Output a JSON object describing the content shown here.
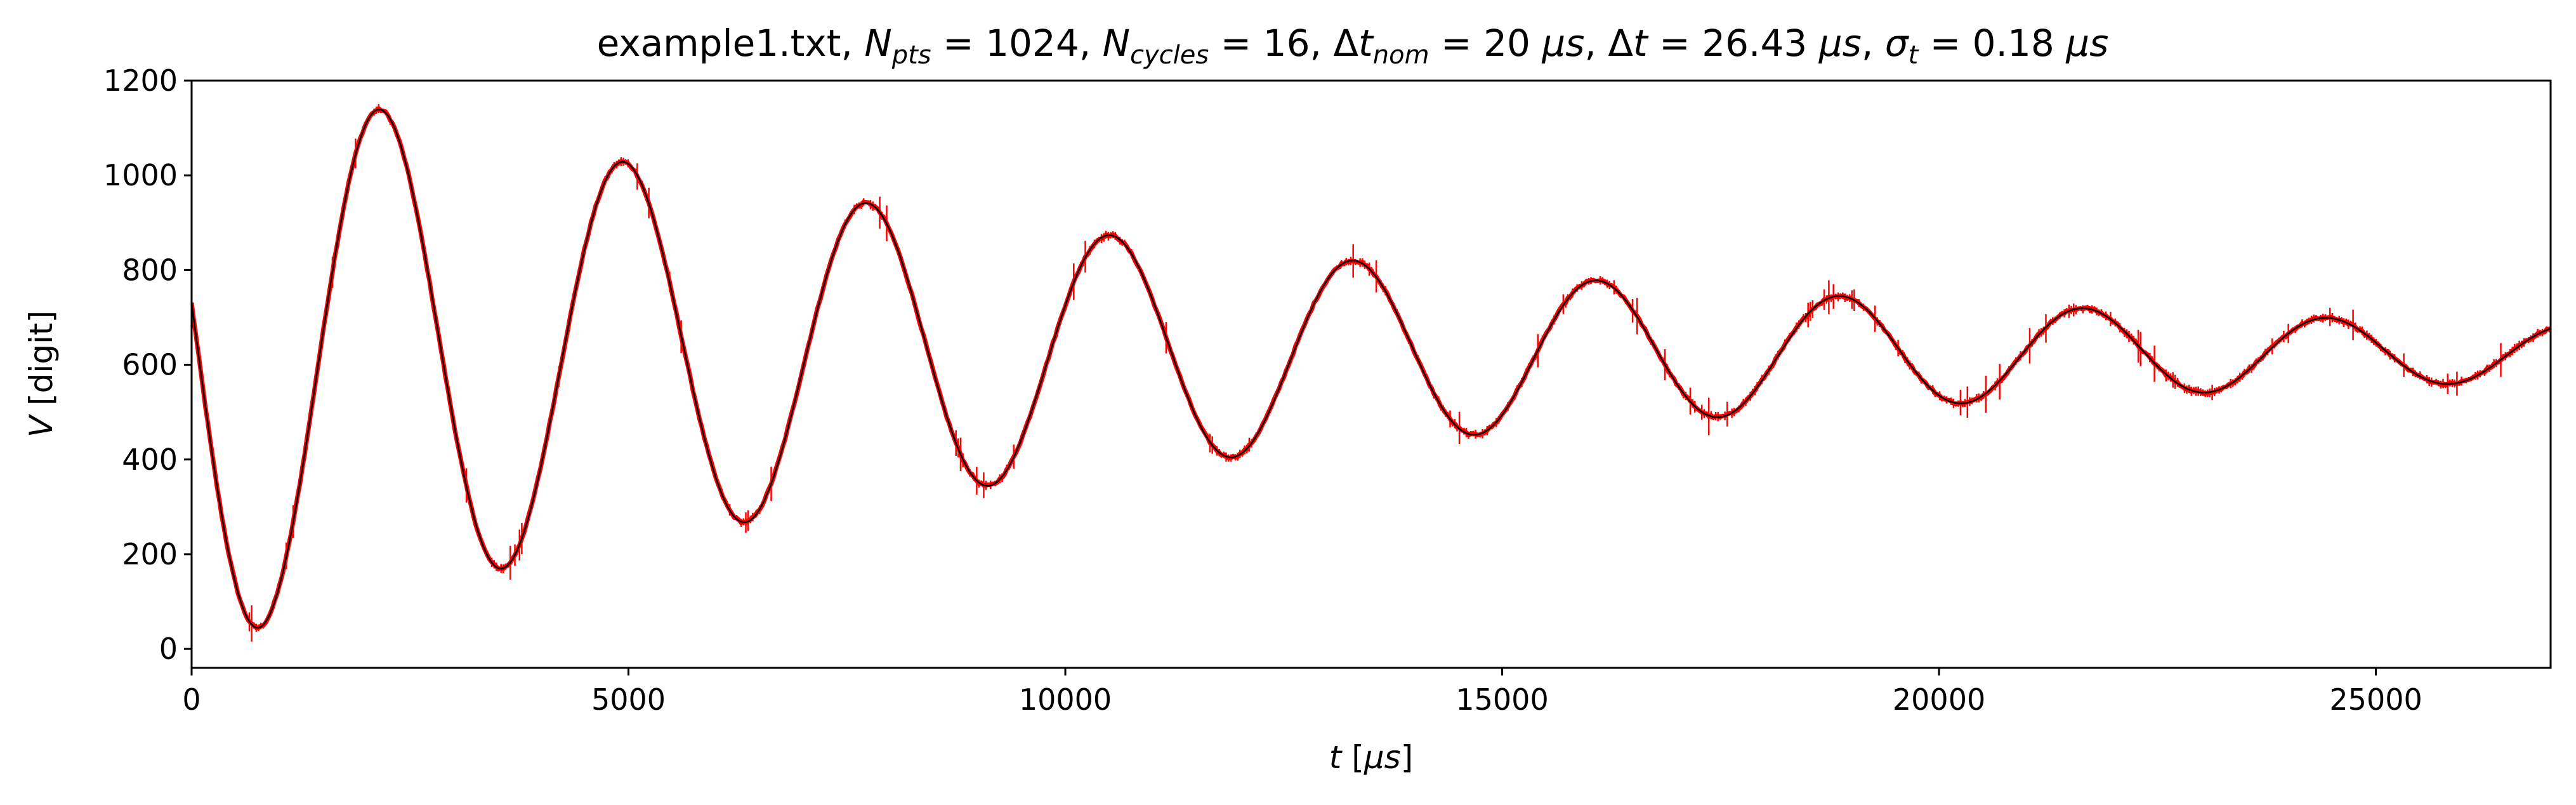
{
  "chart_data": {
    "type": "line",
    "title": {
      "main": "example1.txt, ",
      "n_pts_sym": "N",
      "n_pts_sub": "pts",
      "n_pts_val": " = 1024, ",
      "n_cycles_sym": "N",
      "n_cycles_sub": "cycles",
      "n_cycles_val": " = 16, ",
      "dt_nom_delta": "Δ",
      "dt_nom_sym": "t",
      "dt_nom_sub": "nom",
      "dt_nom_val": " = 20 ",
      "dt_nom_unit": "μs",
      "sep1": ", ",
      "dt_delta": "Δ",
      "dt_sym": "t",
      "dt_val": " = 26.43 ",
      "dt_unit": "μs",
      "sep2": ", ",
      "sigma_sym": "σ",
      "sigma_sub": "t",
      "sigma_val": " = 0.18 ",
      "sigma_unit": "μs"
    },
    "xlabel": {
      "sym": "t",
      "open": " [",
      "unit": "μs",
      "close": "]"
    },
    "ylabel": {
      "sym": "V",
      "rest": " [digit]"
    },
    "xlim": [
      0,
      27000
    ],
    "ylim": [
      -40,
      1200
    ],
    "x_ticks": [
      0,
      5000,
      10000,
      15000,
      20000,
      25000
    ],
    "x_tick_labels": [
      "0",
      "5000",
      "10000",
      "15000",
      "20000",
      "25000"
    ],
    "y_ticks": [
      0,
      200,
      400,
      600,
      800,
      1000,
      1200
    ],
    "y_tick_labels": [
      "0",
      "200",
      "400",
      "600",
      "800",
      "1000",
      "1200"
    ],
    "grid": false,
    "n_points": 1024,
    "dt": 26.43,
    "series": [
      {
        "kind": "data-with-errorbars",
        "color": "#ff0000",
        "equilibrium": 625,
        "amplitude": 620,
        "decay_time": 11500,
        "period": 2785,
        "phase": 1.4
      },
      {
        "kind": "fit-line",
        "color": "#000000",
        "equilibrium": 625,
        "amplitude": 620,
        "decay_time": 11500,
        "period": 2785,
        "phase": 1.4
      }
    ]
  }
}
